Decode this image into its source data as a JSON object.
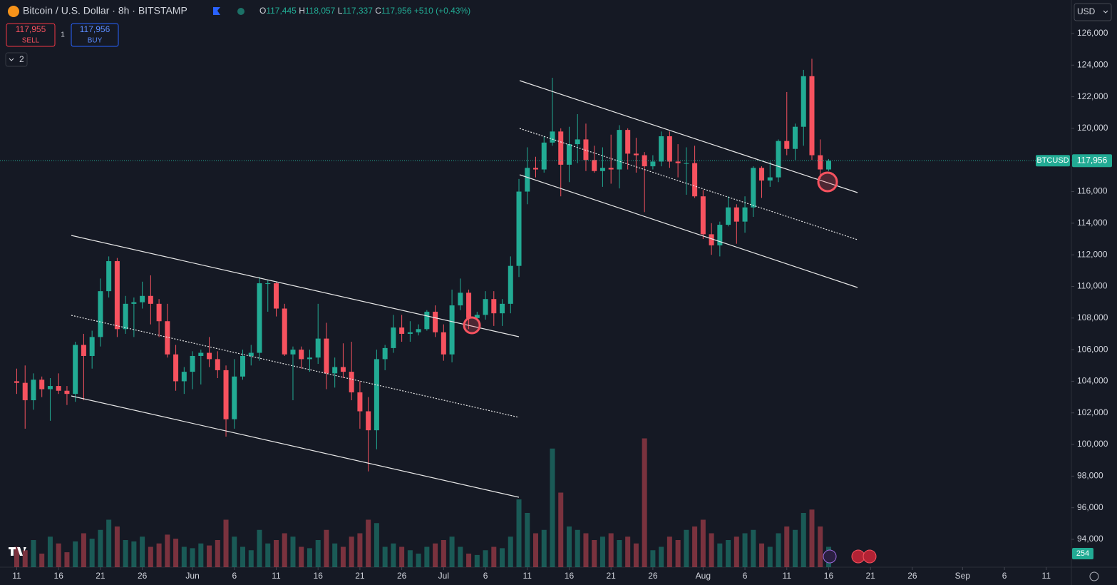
{
  "chart_data": {
    "type": "candlestick",
    "title": "Bitcoin / U.S. Dollar · 8h · BITSTAMP",
    "ohlc": {
      "o": "O",
      "open": "117,445",
      "h": "H",
      "high": "118,057",
      "l": "L",
      "low": "117,337",
      "c": "C",
      "close": "117,956",
      "change": "+510 (+0.43%)"
    },
    "sell": {
      "price": "117,955",
      "label": "SELL"
    },
    "buy": {
      "price": "117,956",
      "label": "BUY"
    },
    "spread": "1",
    "indicators_count": "2",
    "currency": "USD",
    "symbol": "BTCUSD",
    "last_price": {
      "value": 117956,
      "label": "117,956"
    },
    "volume_label": "254",
    "up_color": "#22ab94",
    "down_color": "#f7525f",
    "xlim": [
      -2,
      126
    ],
    "ylim": [
      92240,
      128120
    ],
    "xticks": [
      {
        "value": 0,
        "label": "11"
      },
      {
        "value": 5,
        "label": "16"
      },
      {
        "value": 10,
        "label": "21"
      },
      {
        "value": 15,
        "label": "26"
      },
      {
        "value": 21,
        "label": "Jun"
      },
      {
        "value": 26,
        "label": "6"
      },
      {
        "value": 31,
        "label": "11"
      },
      {
        "value": 36,
        "label": "16"
      },
      {
        "value": 41,
        "label": "21"
      },
      {
        "value": 46,
        "label": "26"
      },
      {
        "value": 51,
        "label": "Jul"
      },
      {
        "value": 56,
        "label": "6"
      },
      {
        "value": 61,
        "label": "11"
      },
      {
        "value": 66,
        "label": "16"
      },
      {
        "value": 71,
        "label": "21"
      },
      {
        "value": 76,
        "label": "26"
      },
      {
        "value": 82,
        "label": "Aug"
      },
      {
        "value": 87,
        "label": "6"
      },
      {
        "value": 92,
        "label": "11"
      },
      {
        "value": 97,
        "label": "16"
      },
      {
        "value": 102,
        "label": "21"
      },
      {
        "value": 107,
        "label": "26"
      },
      {
        "value": 113,
        "label": "Sep"
      },
      {
        "value": 118,
        "label": "6"
      },
      {
        "value": 123,
        "label": "11"
      }
    ],
    "yticks": [
      {
        "value": 94000,
        "label": "94,000"
      },
      {
        "value": 96000,
        "label": "96,000"
      },
      {
        "value": 98000,
        "label": "98,000"
      },
      {
        "value": 100000,
        "label": "100,000"
      },
      {
        "value": 102000,
        "label": "102,000"
      },
      {
        "value": 104000,
        "label": "104,000"
      },
      {
        "value": 106000,
        "label": "106,000"
      },
      {
        "value": 108000,
        "label": "108,000"
      },
      {
        "value": 110000,
        "label": "110,000"
      },
      {
        "value": 112000,
        "label": "112,000"
      },
      {
        "value": 114000,
        "label": "114,000"
      },
      {
        "value": 116000,
        "label": "116,000"
      },
      {
        "value": 118000,
        "label": "118,000"
      },
      {
        "value": 120000,
        "label": "120,000"
      },
      {
        "value": 122000,
        "label": "122,000"
      },
      {
        "value": 124000,
        "label": "124,000"
      },
      {
        "value": 126000,
        "label": "126,000"
      }
    ],
    "candles": [
      [
        104000,
        104800,
        103200,
        103900
      ],
      [
        103900,
        105000,
        101000,
        102800
      ],
      [
        102800,
        104500,
        102200,
        104100
      ],
      [
        104100,
        104300,
        103000,
        103500
      ],
      [
        103500,
        104200,
        101500,
        103700
      ],
      [
        103700,
        104500,
        103200,
        103400
      ],
      [
        103400,
        103700,
        102500,
        103200
      ],
      [
        103200,
        106500,
        102700,
        106300
      ],
      [
        106300,
        107000,
        102800,
        105600
      ],
      [
        105600,
        107200,
        104800,
        106800
      ],
      [
        106800,
        110500,
        106200,
        109700
      ],
      [
        109700,
        111900,
        109300,
        111600
      ],
      [
        111600,
        111800,
        106800,
        107300
      ],
      [
        107300,
        109400,
        107000,
        108900
      ],
      [
        108900,
        109300,
        106800,
        109000
      ],
      [
        109000,
        110300,
        108600,
        109400
      ],
      [
        109400,
        110700,
        107600,
        108900
      ],
      [
        108900,
        109200,
        106800,
        107800
      ],
      [
        107800,
        108900,
        105500,
        105700
      ],
      [
        105700,
        106300,
        103400,
        104000
      ],
      [
        104000,
        104900,
        103200,
        104600
      ],
      [
        104600,
        105900,
        103500,
        105600
      ],
      [
        105600,
        106000,
        103800,
        105800
      ],
      [
        105800,
        106800,
        104900,
        105400
      ],
      [
        105400,
        105900,
        104200,
        104700
      ],
      [
        104700,
        105000,
        100500,
        101600
      ],
      [
        101600,
        105400,
        101000,
        104300
      ],
      [
        104300,
        106000,
        104100,
        105600
      ],
      [
        105600,
        106300,
        105000,
        105800
      ],
      [
        105800,
        110600,
        105300,
        110200
      ],
      [
        110200,
        110400,
        108400,
        110200
      ],
      [
        110200,
        110300,
        108100,
        108600
      ],
      [
        108600,
        108900,
        105600,
        105700
      ],
      [
        105700,
        106200,
        102800,
        106000
      ],
      [
        106000,
        106200,
        104800,
        105400
      ],
      [
        105400,
        106000,
        104600,
        105500
      ],
      [
        105500,
        108900,
        105100,
        106700
      ],
      [
        106700,
        107700,
        103500,
        104500
      ],
      [
        104500,
        105500,
        103600,
        104900
      ],
      [
        104900,
        106400,
        104200,
        104600
      ],
      [
        104600,
        106500,
        102800,
        103300
      ],
      [
        103300,
        104000,
        101000,
        102100
      ],
      [
        102100,
        103000,
        98300,
        100900
      ],
      [
        100900,
        106000,
        99700,
        105400
      ],
      [
        105400,
        106300,
        104700,
        106100
      ],
      [
        106100,
        108200,
        105800,
        107400
      ],
      [
        107400,
        108200,
        106500,
        107000
      ],
      [
        107000,
        107800,
        106500,
        107100
      ],
      [
        107100,
        107600,
        106900,
        107300
      ],
      [
        107300,
        108500,
        107200,
        108400
      ],
      [
        108400,
        108800,
        106800,
        107100
      ],
      [
        107100,
        107600,
        105300,
        105700
      ],
      [
        105700,
        109800,
        105200,
        108800
      ],
      [
        108800,
        110500,
        108500,
        109600
      ],
      [
        109600,
        109800,
        107300,
        108000
      ],
      [
        108000,
        108400,
        107800,
        108200
      ],
      [
        108200,
        109700,
        107900,
        109200
      ],
      [
        109200,
        109700,
        107500,
        108300
      ],
      [
        108300,
        109200,
        107500,
        108900
      ],
      [
        108900,
        111900,
        108300,
        111300
      ],
      [
        111300,
        116800,
        110600,
        116000
      ],
      [
        116000,
        118800,
        115200,
        117500
      ],
      [
        117500,
        118200,
        116900,
        117400
      ],
      [
        117400,
        119500,
        117200,
        119100
      ],
      [
        119100,
        123200,
        118900,
        119800
      ],
      [
        119800,
        120000,
        115700,
        117700
      ],
      [
        117700,
        120100,
        116600,
        119000
      ],
      [
        119000,
        120900,
        117800,
        119300
      ],
      [
        119300,
        120300,
        117300,
        118000
      ],
      [
        118000,
        118900,
        117200,
        117300
      ],
      [
        117300,
        118800,
        116300,
        117500
      ],
      [
        117500,
        119600,
        116500,
        117400
      ],
      [
        117400,
        120200,
        116200,
        119900
      ],
      [
        119900,
        120000,
        117400,
        118400
      ],
      [
        118400,
        119400,
        117200,
        118300
      ],
      [
        118300,
        118500,
        114700,
        117600
      ],
      [
        117600,
        118300,
        117400,
        117900
      ],
      [
        117900,
        119800,
        117600,
        119500
      ],
      [
        119500,
        119800,
        117500,
        117900
      ],
      [
        117900,
        119000,
        116900,
        117800
      ],
      [
        117800,
        118800,
        115800,
        117800
      ],
      [
        117800,
        118900,
        115600,
        115700
      ],
      [
        115700,
        116100,
        113000,
        113300
      ],
      [
        113300,
        114000,
        112000,
        112600
      ],
      [
        112600,
        114100,
        111900,
        113900
      ],
      [
        113900,
        115700,
        113800,
        115000
      ],
      [
        115000,
        115200,
        112700,
        114100
      ],
      [
        114100,
        115700,
        113400,
        115000
      ],
      [
        115000,
        117600,
        114400,
        117500
      ],
      [
        117500,
        117600,
        115600,
        116700
      ],
      [
        116700,
        117900,
        116300,
        116900
      ],
      [
        116900,
        119300,
        116600,
        119200
      ],
      [
        119200,
        122300,
        118300,
        118700
      ],
      [
        118700,
        120300,
        118000,
        120100
      ],
      [
        120100,
        123700,
        118900,
        123300
      ],
      [
        123300,
        124400,
        118000,
        118300
      ],
      [
        118300,
        119300,
        116800,
        117400
      ],
      [
        117400,
        118060,
        117300,
        117956
      ]
    ],
    "volume": [
      30,
      25,
      40,
      20,
      45,
      35,
      22,
      38,
      50,
      42,
      55,
      70,
      60,
      40,
      38,
      45,
      30,
      35,
      48,
      42,
      30,
      28,
      35,
      32,
      40,
      70,
      45,
      30,
      25,
      55,
      35,
      40,
      50,
      45,
      30,
      28,
      40,
      55,
      35,
      30,
      45,
      50,
      70,
      65,
      30,
      35,
      30,
      25,
      20,
      30,
      35,
      40,
      45,
      30,
      20,
      18,
      25,
      30,
      28,
      45,
      100,
      80,
      50,
      55,
      175,
      110,
      60,
      55,
      50,
      40,
      45,
      50,
      40,
      45,
      35,
      190,
      25,
      30,
      45,
      40,
      55,
      60,
      70,
      50,
      35,
      40,
      45,
      50,
      55,
      35,
      30,
      50,
      60,
      55,
      80,
      85,
      60,
      30
    ]
  }
}
